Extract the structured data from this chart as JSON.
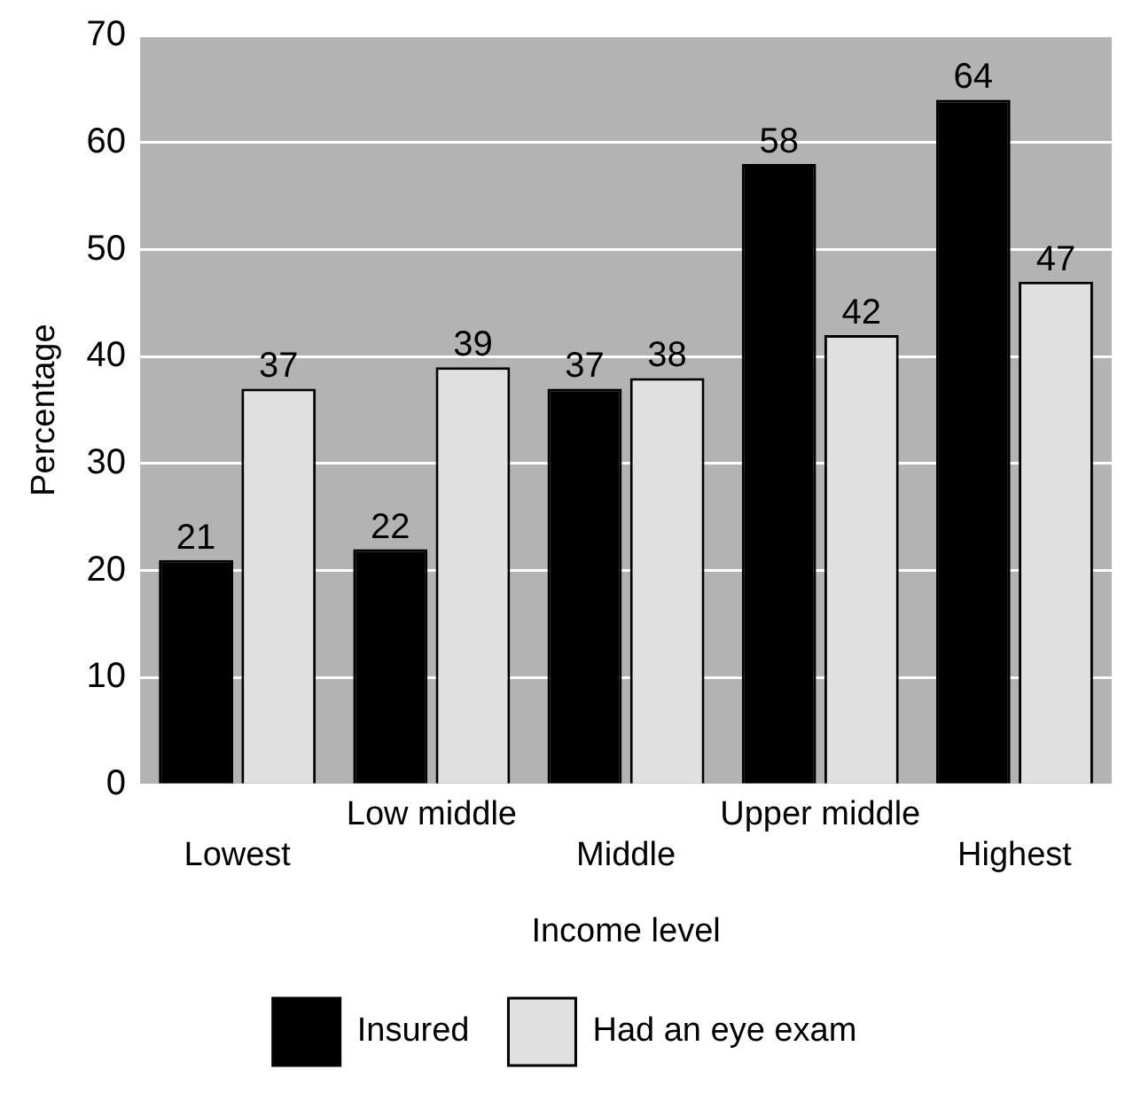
{
  "chart_data": {
    "type": "bar",
    "xlabel": "Income level",
    "ylabel": "Percentage",
    "categories": [
      "Lowest",
      "Low middle",
      "Middle",
      "Upper middle",
      "Highest"
    ],
    "series": [
      {
        "name": "Insured",
        "color": "#000000",
        "values": [
          21,
          22,
          37,
          58,
          64
        ]
      },
      {
        "name": "Had an eye exam",
        "color": "#e0e0e0",
        "values": [
          37,
          39,
          38,
          42,
          47
        ]
      }
    ],
    "ylim": [
      0,
      70
    ],
    "yticks": [
      0,
      10,
      20,
      30,
      40,
      50,
      60,
      70
    ],
    "grid": "y",
    "legend": "bottom",
    "data_labels": true
  }
}
